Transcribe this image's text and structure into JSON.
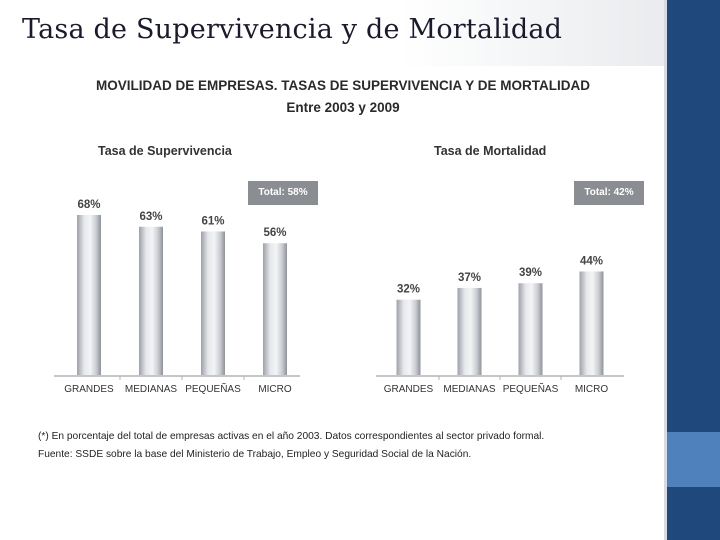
{
  "slide": {
    "title": "Tasa de Supervivencia y de Mortalidad"
  },
  "figure": {
    "title_line1": "MOVILIDAD DE EMPRESAS. TASAS DE SUPERVIVENCIA Y DE MORTALIDAD",
    "title_line2": "Entre 2003 y 2009",
    "footnote1": "(*) En porcentaje del total de empresas activas en el año 2003. Datos correspondientes al sector privado formal.",
    "footnote2": "Fuente: SSDE sobre la base del Ministerio de Trabajo, Empleo y Seguridad Social de la Nación."
  },
  "chart_data": [
    {
      "type": "bar",
      "title": "Tasa de Supervivencia",
      "total_label": "Total: 58%",
      "categories": [
        "GRANDES",
        "MEDIANAS",
        "PEQUEÑAS",
        "MICRO"
      ],
      "values": [
        68,
        63,
        61,
        56
      ],
      "value_labels": [
        "68%",
        "63%",
        "61%",
        "56%"
      ],
      "ylim": [
        0,
        75
      ],
      "xlabel": "",
      "ylabel": ""
    },
    {
      "type": "bar",
      "title": "Tasa de Mortalidad",
      "total_label": "Total: 42%",
      "categories": [
        "GRANDES",
        "MEDIANAS",
        "PEQUEÑAS",
        "MICRO"
      ],
      "values": [
        32,
        37,
        39,
        44
      ],
      "value_labels": [
        "32%",
        "37%",
        "39%",
        "44%"
      ],
      "ylim": [
        0,
        75
      ],
      "xlabel": "",
      "ylabel": ""
    }
  ],
  "colors": {
    "bar_light": "#e6e8ec",
    "bar_dark": "#9da1a8",
    "total_box": "#8a8d92",
    "brand_blue": "#1f497d",
    "accent_blue": "#4f81bd"
  }
}
